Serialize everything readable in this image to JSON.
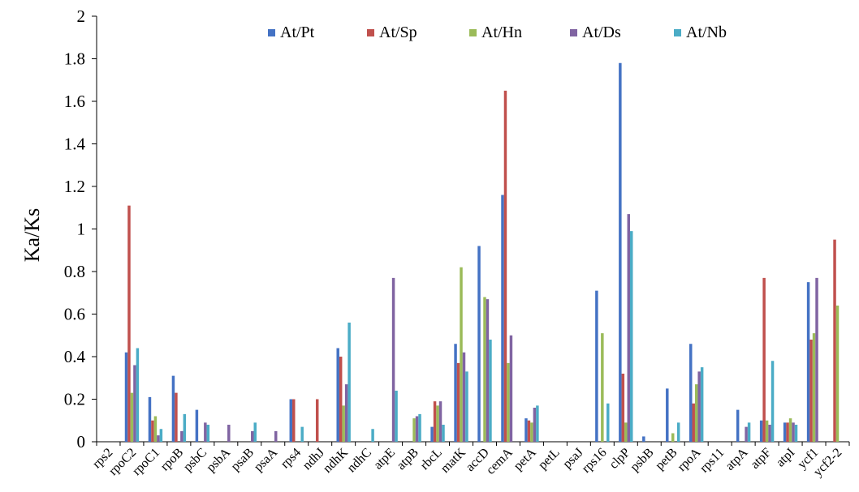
{
  "chart_data": {
    "type": "bar",
    "ylabel": "Ka/Ks",
    "xlabel": "",
    "title": "",
    "ylim": [
      0,
      2
    ],
    "yticks": [
      0,
      0.2,
      0.4,
      0.6,
      0.8,
      1,
      1.2,
      1.4,
      1.6,
      1.8,
      2
    ],
    "legend_position": "top",
    "grid": false,
    "categories": [
      "rps2",
      "rpoC2",
      "rpoC1",
      "rpoB",
      "psbC",
      "psbA",
      "psaB",
      "psaA",
      "rps4",
      "ndhJ",
      "ndhK",
      "ndhC",
      "atpE",
      "atpB",
      "rbcL",
      "matK",
      "accD",
      "cemA",
      "petA",
      "petL",
      "psaJ",
      "rps16",
      "clpP",
      "psbB",
      "petB",
      "rpoA",
      "rps11",
      "atpA",
      "atpF",
      "atpI",
      "ycf1",
      "ycf2-2"
    ],
    "series": [
      {
        "name": "At/Pt",
        "color": "#4472C4",
        "values": [
          0,
          0.42,
          0.21,
          0.31,
          0.15,
          0,
          0,
          0,
          0.2,
          0,
          0.44,
          0,
          0,
          0,
          0.07,
          0.46,
          0.92,
          1.16,
          0.11,
          0,
          0,
          0.71,
          1.78,
          0.025,
          0.25,
          0.46,
          0,
          0.15,
          0.1,
          0.09,
          0.75,
          0
        ]
      },
      {
        "name": "At/Sp",
        "color": "#C0504D",
        "values": [
          0,
          1.11,
          0.1,
          0.23,
          0,
          0,
          0,
          0,
          0.2,
          0.2,
          0.4,
          0,
          0,
          0,
          0.19,
          0.37,
          0,
          1.65,
          0.1,
          0,
          0,
          0,
          0.32,
          0,
          0,
          0.18,
          0,
          0,
          0.77,
          0.09,
          0.48,
          0.95
        ]
      },
      {
        "name": "At/Hn",
        "color": "#9BBB59",
        "values": [
          0,
          0.23,
          0.12,
          0,
          0,
          0,
          0,
          0,
          0,
          0,
          0.17,
          0,
          0,
          0.11,
          0.17,
          0.82,
          0.68,
          0.37,
          0.09,
          0,
          0,
          0.51,
          0.09,
          0,
          0.04,
          0.27,
          0,
          0,
          0.1,
          0.11,
          0.51,
          0.64
        ]
      },
      {
        "name": "At/Ds",
        "color": "#8064A2",
        "values": [
          0,
          0.36,
          0.03,
          0.05,
          0.09,
          0.08,
          0.05,
          0.05,
          0,
          0,
          0.27,
          0,
          0.77,
          0.12,
          0.19,
          0.42,
          0.67,
          0.5,
          0.16,
          0,
          0,
          0,
          1.07,
          0,
          0,
          0.33,
          0,
          0.07,
          0.08,
          0.09,
          0.77,
          0
        ]
      },
      {
        "name": "At/Nb",
        "color": "#4BACC6",
        "values": [
          0,
          0.44,
          0.06,
          0.13,
          0.08,
          0,
          0.09,
          0,
          0.07,
          0,
          0.56,
          0.06,
          0.24,
          0.13,
          0.08,
          0.33,
          0.48,
          0,
          0.17,
          0,
          0,
          0.18,
          0.99,
          0,
          0.09,
          0.35,
          0,
          0.09,
          0.38,
          0.08,
          0,
          0
        ]
      }
    ]
  }
}
